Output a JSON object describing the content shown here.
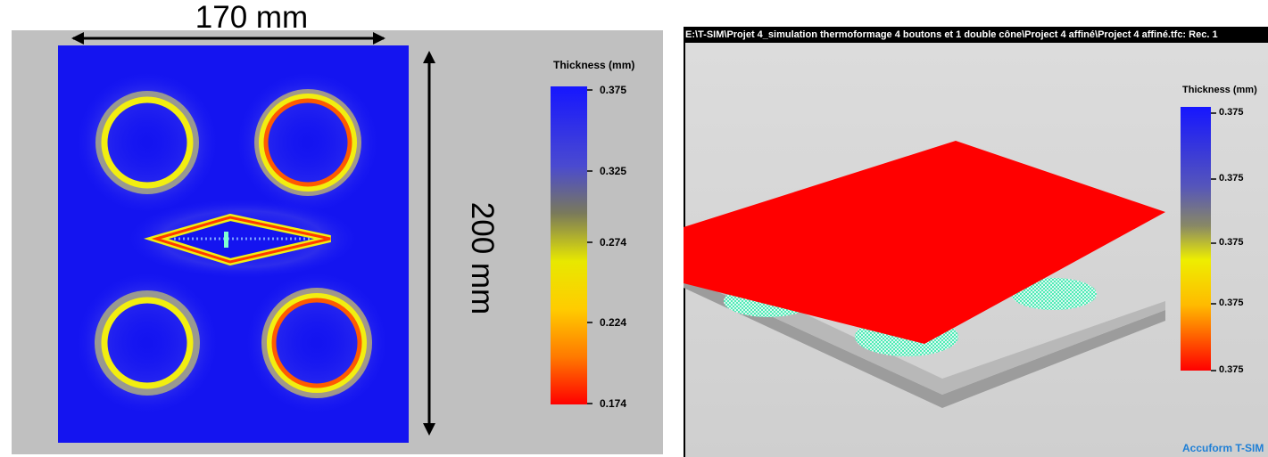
{
  "left_figure": {
    "width_dimension": "170 mm",
    "height_dimension": "200 mm",
    "legend": {
      "title": "Thickness (mm)",
      "ticks": [
        "0.375",
        "0.325",
        "0.274",
        "0.224",
        "0.174"
      ],
      "colors": [
        "#1a1aff",
        "#6b6b6b",
        "#f3f300",
        "#ff8c00",
        "#ff0000"
      ]
    }
  },
  "right_window": {
    "title": "E:\\T-SIM\\Projet 4_simulation thermoformage 4 boutons et 1 double cône\\Project 4 affiné\\Project 4 affiné.tfc: Rec. 1",
    "legend": {
      "title": "Thickness (mm)",
      "ticks": [
        "0.375",
        "0.375",
        "0.375",
        "0.375",
        "0.375"
      ]
    },
    "brand": "Accuform T-SIM",
    "colors": {
      "plate": "#ff0000",
      "base": "#b8b8b8",
      "mesh": "#2ee6a8"
    }
  }
}
